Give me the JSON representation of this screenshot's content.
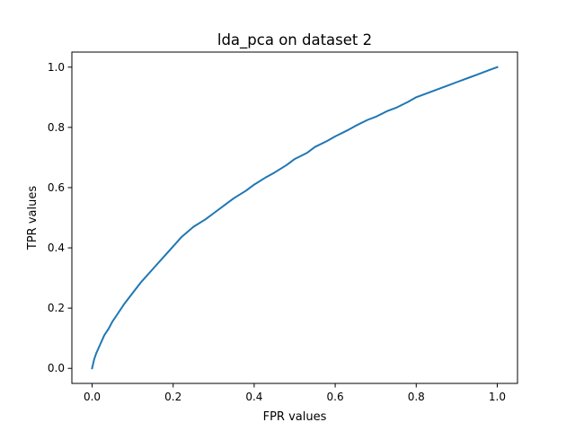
{
  "chart_data": {
    "type": "line",
    "title": "lda_pca on dataset 2",
    "xlabel": "FPR values",
    "ylabel": "TPR values",
    "xlim": [
      -0.05,
      1.05
    ],
    "ylim": [
      -0.05,
      1.05
    ],
    "xticks": [
      "0.0",
      "0.2",
      "0.4",
      "0.6",
      "0.8",
      "1.0"
    ],
    "yticks": [
      "0.0",
      "0.2",
      "0.4",
      "0.6",
      "0.8",
      "1.0"
    ],
    "grid": false,
    "series": [
      {
        "color": "#1f77b4",
        "x": [
          0.0,
          0.005,
          0.01,
          0.02,
          0.03,
          0.04,
          0.05,
          0.06,
          0.08,
          0.1,
          0.12,
          0.15,
          0.18,
          0.2,
          0.22,
          0.25,
          0.28,
          0.3,
          0.33,
          0.35,
          0.38,
          0.4,
          0.43,
          0.45,
          0.48,
          0.5,
          0.53,
          0.55,
          0.58,
          0.6,
          0.63,
          0.65,
          0.68,
          0.7,
          0.73,
          0.75,
          0.78,
          0.8,
          0.83,
          0.85,
          0.88,
          0.9,
          0.93,
          0.95,
          0.98,
          1.0
        ],
        "y": [
          0.0,
          0.03,
          0.05,
          0.08,
          0.11,
          0.13,
          0.155,
          0.175,
          0.215,
          0.25,
          0.285,
          0.33,
          0.375,
          0.405,
          0.435,
          0.47,
          0.495,
          0.515,
          0.545,
          0.565,
          0.59,
          0.61,
          0.635,
          0.65,
          0.675,
          0.695,
          0.715,
          0.735,
          0.755,
          0.77,
          0.79,
          0.805,
          0.825,
          0.835,
          0.855,
          0.865,
          0.885,
          0.9,
          0.915,
          0.925,
          0.94,
          0.95,
          0.965,
          0.975,
          0.99,
          1.0
        ]
      }
    ]
  }
}
